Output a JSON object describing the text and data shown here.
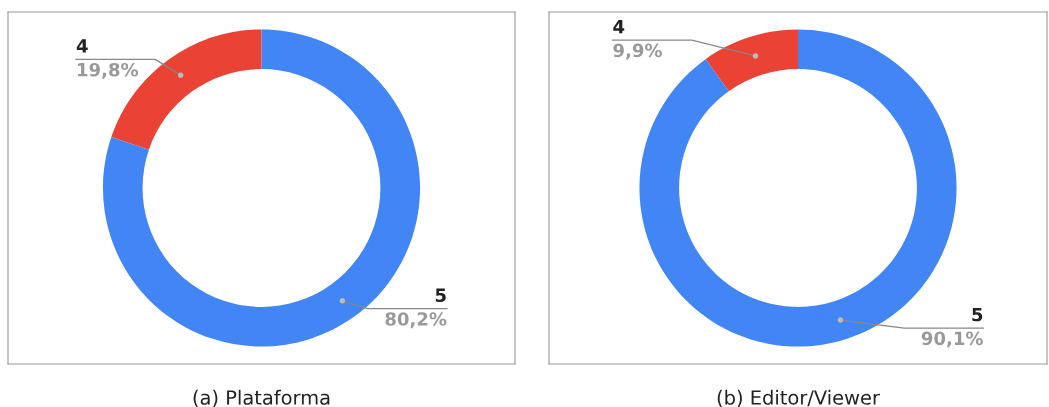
{
  "chart_data": [
    {
      "type": "donut",
      "title": "(a) Plataforma",
      "categories": [
        "4",
        "5"
      ],
      "values": [
        19.8,
        80.2
      ],
      "colors": [
        "#ea4335",
        "#4285f4"
      ],
      "value_labels": [
        "19,8%",
        "80,2%"
      ]
    },
    {
      "type": "donut",
      "title": "(b) Editor/Viewer",
      "categories": [
        "4",
        "5"
      ],
      "values": [
        9.9,
        90.1
      ],
      "colors": [
        "#ea4335",
        "#4285f4"
      ],
      "value_labels": [
        "9,9%",
        "90,1%"
      ]
    }
  ]
}
